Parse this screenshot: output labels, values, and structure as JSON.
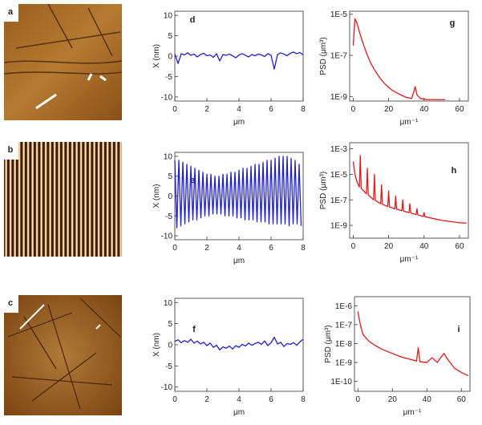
{
  "images": [
    {
      "label": "a"
    },
    {
      "label": "b"
    },
    {
      "label": "c"
    }
  ],
  "chart_data": [
    {
      "type": "line",
      "panel_label": "d",
      "x_label": "μm",
      "y_label": "X (nm)",
      "x": [
        0,
        0.2,
        0.4,
        0.6,
        0.8,
        1,
        1.2,
        1.4,
        1.6,
        1.8,
        2,
        2.2,
        2.4,
        2.6,
        2.8,
        3,
        3.2,
        3.4,
        3.6,
        3.8,
        4,
        4.2,
        4.4,
        4.6,
        4.8,
        5,
        5.2,
        5.4,
        5.6,
        5.8,
        6,
        6.2,
        6.4,
        6.6,
        6.8,
        7,
        7.2,
        7.4,
        7.6,
        7.8,
        8
      ],
      "series": [
        {
          "color": "#1f1fd0",
          "values": [
            0.5,
            -1.8,
            0.6,
            0.3,
            0.8,
            0.2,
            0.5,
            -0.2,
            0.4,
            0.7,
            0.1,
            0.3,
            -0.3,
            0.6,
            -1.2,
            0.4,
            0.2,
            0.5,
            0.1,
            -0.4,
            0.3,
            0.6,
            0.2,
            -0.2,
            0.4,
            0.1,
            0.5,
            0.3,
            -0.1,
            0.6,
            0.2,
            -3.2,
            0.4,
            0.8,
            0.5,
            0.1,
            0.7,
            1.0,
            0.6,
            0.9,
            0.3
          ]
        }
      ],
      "xlim": [
        0,
        8
      ],
      "xticks": [
        0,
        2,
        4,
        6,
        8
      ],
      "ylim": [
        -11,
        11
      ],
      "yticks": [
        -10,
        -5,
        0,
        5,
        10
      ],
      "log_y": false
    },
    {
      "type": "line",
      "panel_label": "g",
      "x_label": "μm⁻¹",
      "y_label": "PSD (μm³)",
      "x": [
        0,
        1,
        2,
        3,
        4,
        6,
        8,
        10,
        12,
        15,
        18,
        22,
        26,
        30,
        33,
        34,
        35,
        36,
        38,
        42,
        46,
        50,
        52
      ],
      "series": [
        {
          "color": "#e01a1a",
          "values": [
            3e-07,
            6e-06,
            4e-06,
            2e-06,
            1e-06,
            3e-07,
            1e-07,
            4e-08,
            2e-08,
            8e-09,
            4e-09,
            2e-09,
            1.3e-09,
            9e-10,
            8e-10,
            1.5e-09,
            3e-09,
            1.2e-09,
            8e-10,
            7e-10,
            7e-10,
            7e-10,
            7e-10
          ]
        }
      ],
      "xlim": [
        -2,
        65
      ],
      "xticks": [
        0,
        20,
        40,
        60
      ],
      "ylim": [
        6e-10,
        1.4e-05
      ],
      "yticks": [
        {
          "value": 1e-09,
          "label": "1E-9"
        },
        {
          "value": 1e-07,
          "label": "1E-7"
        },
        {
          "value": 1e-05,
          "label": "1E-5"
        }
      ],
      "log_y": true
    },
    {
      "type": "line",
      "panel_label": "e",
      "x_label": "μm",
      "y_label": "X (nm)",
      "x": [
        0,
        0.125,
        0.25,
        0.375,
        0.5,
        0.625,
        0.75,
        0.875,
        1,
        1.125,
        1.25,
        1.375,
        1.5,
        1.625,
        1.75,
        1.875,
        2,
        2.125,
        2.25,
        2.375,
        2.5,
        2.625,
        2.75,
        2.875,
        3,
        3.125,
        3.25,
        3.375,
        3.5,
        3.625,
        3.75,
        3.875,
        4,
        4.125,
        4.25,
        4.375,
        4.5,
        4.625,
        4.75,
        4.875,
        5,
        5.125,
        5.25,
        5.375,
        5.5,
        5.625,
        5.75,
        5.875,
        6,
        6.125,
        6.25,
        6.375,
        6.5,
        6.625,
        6.75,
        6.875,
        7,
        7.125,
        7.25,
        7.375,
        7.5,
        7.625,
        7.75,
        7.875
      ],
      "series": [
        {
          "color": "#1f1fd0",
          "values": [
            9,
            -8,
            9,
            -7.5,
            8.5,
            -7,
            8,
            -6.5,
            7.5,
            -6,
            7,
            -6,
            6.5,
            -5.5,
            6,
            -5,
            5.5,
            -5,
            5.5,
            -4.5,
            5,
            -4.5,
            5,
            -4.5,
            5.5,
            -5,
            5.5,
            -5,
            6,
            -5,
            6,
            -5.5,
            6.5,
            -5.5,
            7,
            -6,
            7,
            -6,
            7.5,
            -6,
            8,
            -6.5,
            8,
            -6.5,
            8.5,
            -6.5,
            9,
            -7,
            9,
            -7,
            9.5,
            -7,
            10,
            -7,
            10,
            -7,
            10,
            -7.5,
            9.5,
            -7,
            9,
            -7,
            8,
            -7.5
          ]
        }
      ],
      "xlim": [
        0,
        8
      ],
      "xticks": [
        0,
        2,
        4,
        6,
        8
      ],
      "ylim": [
        -11,
        11
      ],
      "yticks": [
        -10,
        -5,
        0,
        5,
        10
      ],
      "log_y": false
    },
    {
      "type": "line",
      "panel_label": "h",
      "x_label": "μm⁻¹",
      "y_label": "PSD (μm³)",
      "x": [
        0,
        1,
        2,
        3.5,
        4,
        4.5,
        7.5,
        8,
        8.5,
        11.5,
        12,
        12.5,
        15.5,
        16,
        16.5,
        19.5,
        20,
        20.5,
        23.5,
        24,
        24.5,
        27.5,
        28,
        28.5,
        31.5,
        32,
        32.5,
        35.5,
        36,
        36.5,
        39.5,
        40,
        40.5,
        45,
        50,
        55,
        60,
        64
      ],
      "series": [
        {
          "color": "#e01a1a",
          "values": [
            0.0001,
            1e-05,
            3e-06,
            1e-06,
            0.0003,
            8e-07,
            3e-07,
            3e-05,
            2.5e-07,
            1e-07,
            1e-05,
            9e-08,
            5e-08,
            1.5e-06,
            4.5e-08,
            3e-08,
            5e-07,
            2.8e-08,
            2e-08,
            2e-07,
            1.9e-08,
            1.4e-08,
            1e-07,
            1.3e-08,
            1e-08,
            5e-08,
            9.5e-09,
            7e-09,
            2e-08,
            6.8e-09,
            5e-09,
            1e-08,
            4.8e-09,
            3.5e-09,
            2.5e-09,
            2e-09,
            1.6e-09,
            1.5e-09
          ]
        }
      ],
      "xlim": [
        -2,
        65
      ],
      "xticks": [
        0,
        20,
        40,
        60
      ],
      "ylim": [
        1e-10,
        0.003
      ],
      "yticks": [
        {
          "value": 1e-09,
          "label": "1E-9"
        },
        {
          "value": 1e-07,
          "label": "1E-7"
        },
        {
          "value": 1e-05,
          "label": "1E-5"
        },
        {
          "value": 0.001,
          "label": "1E-3"
        }
      ],
      "log_y": true
    },
    {
      "type": "line",
      "panel_label": "f",
      "x_label": "μm",
      "y_label": "X (nm)",
      "x": [
        0,
        0.2,
        0.4,
        0.6,
        0.8,
        1,
        1.2,
        1.4,
        1.6,
        1.8,
        2,
        2.2,
        2.4,
        2.6,
        2.8,
        3,
        3.2,
        3.4,
        3.6,
        3.8,
        4,
        4.2,
        4.4,
        4.6,
        4.8,
        5,
        5.2,
        5.4,
        5.6,
        5.8,
        6,
        6.2,
        6.4,
        6.6,
        6.8,
        7,
        7.2,
        7.4,
        7.6,
        7.8,
        8
      ],
      "series": [
        {
          "color": "#1f1fd0",
          "values": [
            0.8,
            1.2,
            0.5,
            1.0,
            0.6,
            1.3,
            0.4,
            0.9,
            0.2,
            0.6,
            -0.2,
            0.4,
            -0.6,
            -0.1,
            -1.2,
            -0.5,
            -0.8,
            -0.3,
            -1.0,
            -0.2,
            -0.6,
            0.1,
            -0.3,
            0.4,
            -0.1,
            0.3,
            0.6,
            0.1,
            0.9,
            -0.2,
            0.5,
            1.8,
            0.2,
            0.6,
            -0.4,
            0.3,
            0.1,
            0.5,
            -0.1,
            0.7,
            1.3
          ]
        }
      ],
      "xlim": [
        0,
        8
      ],
      "xticks": [
        0,
        2,
        4,
        6,
        8
      ],
      "ylim": [
        -11,
        11
      ],
      "yticks": [
        -10,
        -5,
        0,
        5,
        10
      ],
      "log_y": false
    },
    {
      "type": "line",
      "panel_label": "i",
      "x_label": "μm⁻¹",
      "y_label": "PSD (μm³)",
      "x": [
        0,
        1,
        2,
        3,
        5,
        7,
        10,
        14,
        20,
        25,
        30,
        34,
        35,
        36,
        40,
        43,
        46,
        48,
        50,
        52,
        56,
        60,
        64
      ],
      "series": [
        {
          "color": "#e01a1a",
          "values": [
            5e-07,
            1.5e-07,
            6e-08,
            3e-08,
            1.8e-08,
            1.2e-08,
            8e-09,
            5e-09,
            3e-09,
            2e-09,
            1.5e-09,
            1.2e-09,
            6e-09,
            1.1e-09,
            1e-09,
            1.8e-09,
            1e-09,
            1.8e-09,
            3e-09,
            1.5e-09,
            5e-10,
            3e-10,
            2e-10
          ]
        }
      ],
      "xlim": [
        -2,
        65
      ],
      "xticks": [
        0,
        20,
        40,
        60
      ],
      "ylim": [
        3e-11,
        3e-06
      ],
      "yticks": [
        {
          "value": 1e-10,
          "label": "1E-10"
        },
        {
          "value": 1e-09,
          "label": "1E-9"
        },
        {
          "value": 1e-08,
          "label": "1E-8"
        },
        {
          "value": 1e-07,
          "label": "1E-7"
        },
        {
          "value": 1e-06,
          "label": "1E-6"
        }
      ],
      "log_y": true
    }
  ]
}
